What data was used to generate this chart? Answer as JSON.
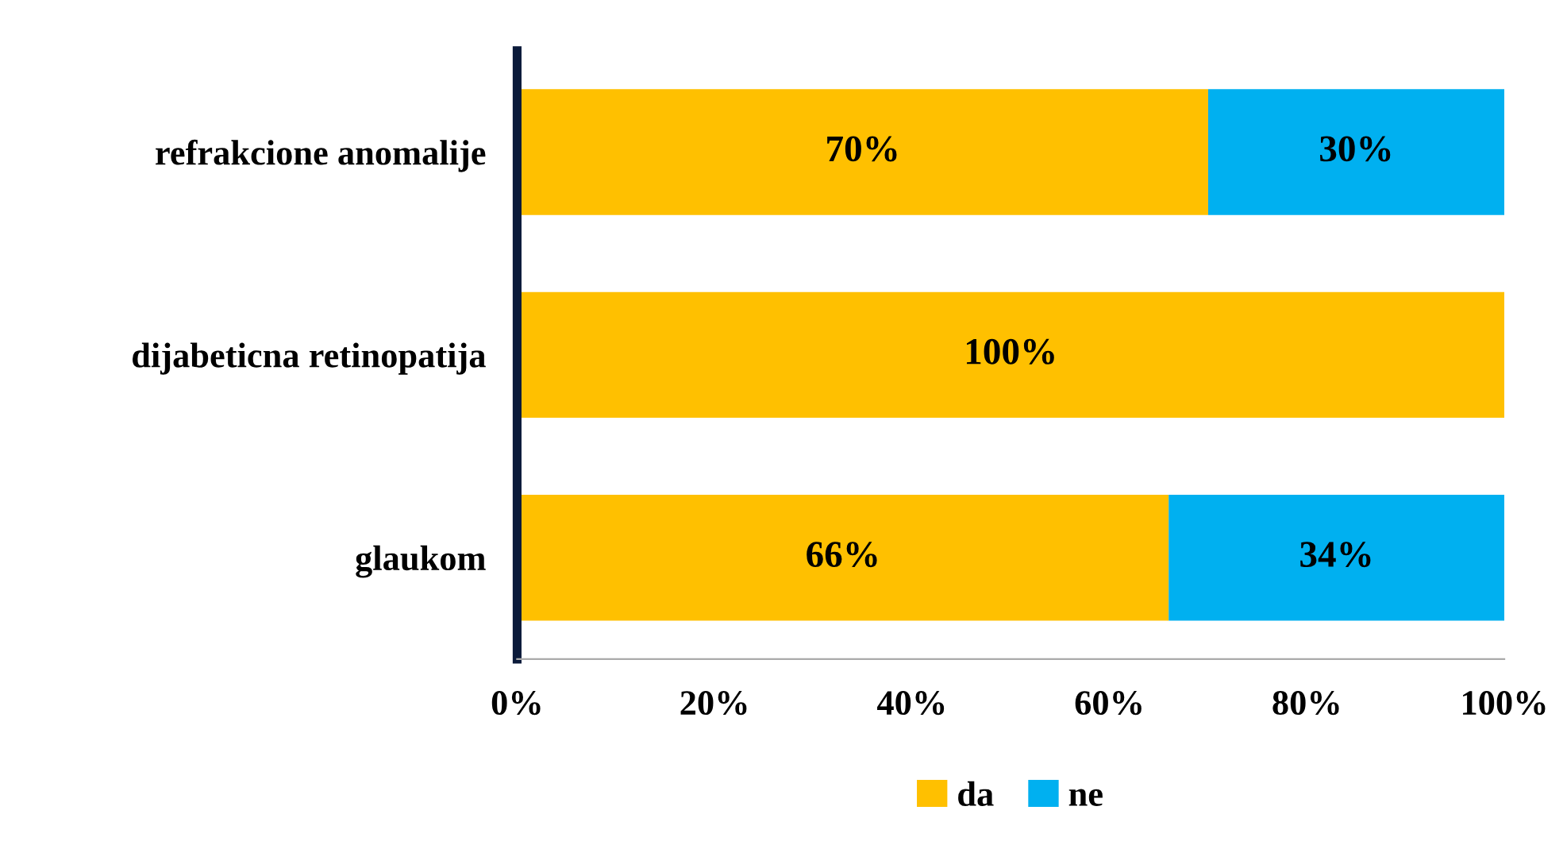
{
  "chart_data": {
    "type": "bar",
    "orientation": "horizontal",
    "stacked": true,
    "categories": [
      "refrakcione anomalije",
      "dijabeticna retinopatija",
      "glaukom"
    ],
    "series": [
      {
        "name": "da",
        "color": "#ffc000",
        "values": [
          70,
          100,
          66
        ],
        "value_labels": [
          "70%",
          "100%",
          "66%"
        ]
      },
      {
        "name": "ne",
        "color": "#00b0f0",
        "values": [
          30,
          0,
          34
        ],
        "value_labels": [
          "30%",
          null,
          "34%"
        ]
      }
    ],
    "xlim": [
      0,
      100
    ],
    "xticks": [
      {
        "value": 0,
        "label": "0%"
      },
      {
        "value": 20,
        "label": "20%"
      },
      {
        "value": 40,
        "label": "40%"
      },
      {
        "value": 60,
        "label": "60%"
      },
      {
        "value": 80,
        "label": "80%"
      },
      {
        "value": 100,
        "label": "100%"
      }
    ],
    "grid": false,
    "legend": "bottom"
  }
}
